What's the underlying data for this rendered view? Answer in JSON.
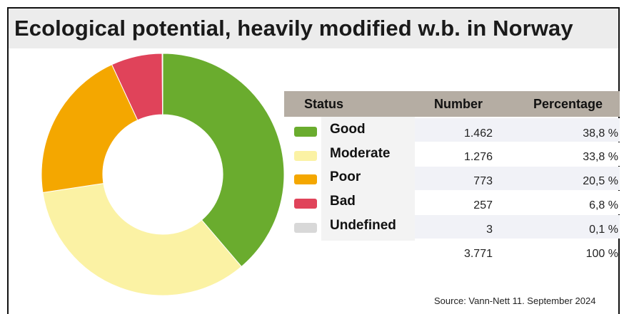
{
  "title": "Ecological potential, heavily modified w.b. in Norway",
  "table": {
    "headers": {
      "status": "Status",
      "number": "Number",
      "percentage": "Percentage"
    },
    "rows": [
      {
        "label": "Good",
        "number": "1.462",
        "percentage": "38,8 %",
        "color": "#6aac2e"
      },
      {
        "label": "Moderate",
        "number": "1.276",
        "percentage": "33,8 %",
        "color": "#fbf2a4"
      },
      {
        "label": "Poor",
        "number": "773",
        "percentage": "20,5 %",
        "color": "#f4a700"
      },
      {
        "label": "Bad",
        "number": "257",
        "percentage": "6,8 %",
        "color": "#e0435a"
      },
      {
        "label": "Undefined",
        "number": "3",
        "percentage": "0,1 %",
        "color": "#d8d8d8"
      }
    ],
    "total": {
      "number": "3.771",
      "percentage": "100 %"
    }
  },
  "source": "Source: Vann-Nett 11. September 2024",
  "chart_data": {
    "type": "pie",
    "style": "donut",
    "categories": [
      "Good",
      "Moderate",
      "Poor",
      "Bad",
      "Undefined"
    ],
    "values": [
      1462,
      1276,
      773,
      257,
      3
    ],
    "percentages": [
      38.8,
      33.8,
      20.5,
      6.8,
      0.1
    ],
    "colors": [
      "#6aac2e",
      "#fbf2a4",
      "#f4a700",
      "#e0435a",
      "#d8d8d8"
    ],
    "total": 3771,
    "start_angle": "12 o'clock",
    "direction": "clockwise"
  }
}
